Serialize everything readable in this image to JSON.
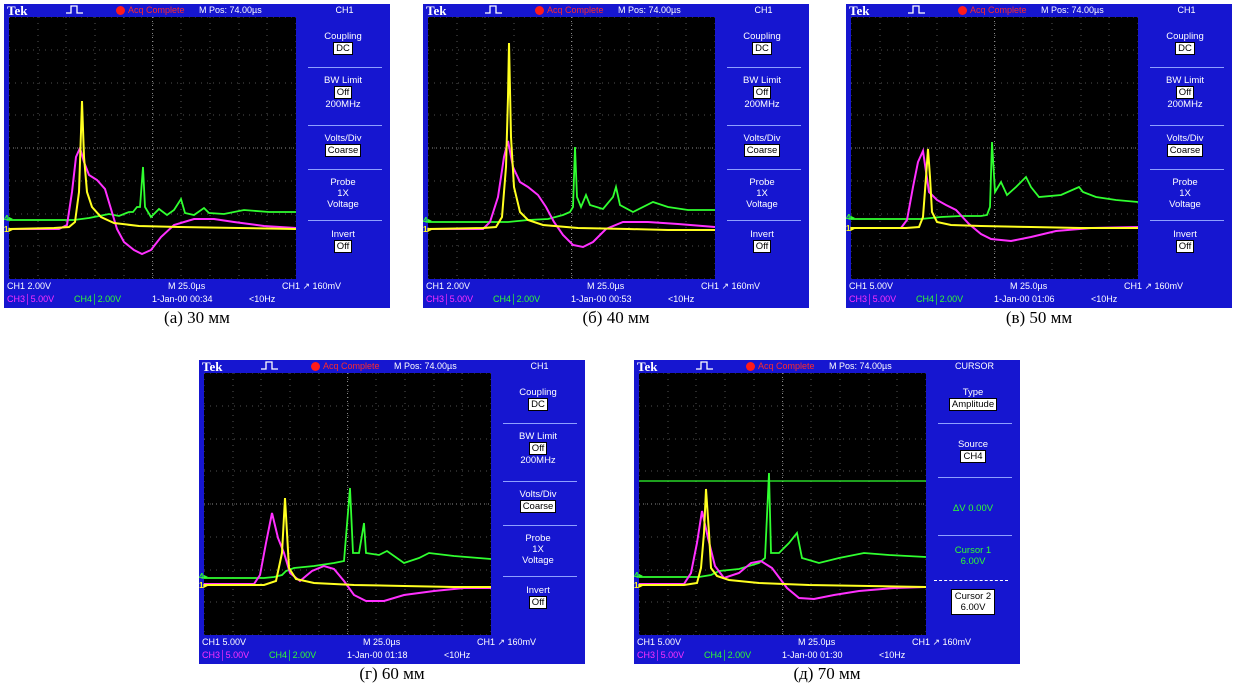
{
  "colors": {
    "ch1": "#ffff20",
    "ch3": "#ff30ff",
    "ch4": "#30ff30",
    "frame": "#1616d0"
  },
  "panels": [
    {
      "brand": "Tek",
      "acq": "Acq Complete",
      "mpos": "M Pos: 74.00µs",
      "title": "CH1",
      "menu": [
        {
          "label": "Coupling",
          "box": "DC"
        },
        {
          "label": "BW Limit",
          "box": "Off",
          "sub": "200MHz"
        },
        {
          "label": "Volts/Div",
          "box": "Coarse"
        },
        {
          "label": "Probe",
          "line2": "1X",
          "line3": "Voltage"
        },
        {
          "label": "Invert",
          "box": "Off"
        }
      ],
      "ch1": "CH1  2.00V",
      "mtime": "M 25.0µs",
      "trig": "CH1 ↗ 160mV",
      "ch3": "CH3│5.00V",
      "ch4": "CH4│2.00V",
      "date": "1-Jan-00 00:34",
      "freq": "<10Hz",
      "caption": "(а) 30 мм"
    },
    {
      "brand": "Tek",
      "acq": "Acq Complete",
      "mpos": "M Pos: 74.00µs",
      "title": "CH1",
      "menu": [
        {
          "label": "Coupling",
          "box": "DC"
        },
        {
          "label": "BW Limit",
          "box": "Off",
          "sub": "200MHz"
        },
        {
          "label": "Volts/Div",
          "box": "Coarse"
        },
        {
          "label": "Probe",
          "line2": "1X",
          "line3": "Voltage"
        },
        {
          "label": "Invert",
          "box": "Off"
        }
      ],
      "ch1": "CH1  2.00V",
      "mtime": "M 25.0µs",
      "trig": "CH1 ↗ 160mV",
      "ch3": "CH3│5.00V",
      "ch4": "CH4│2.00V",
      "date": "1-Jan-00 00:53",
      "freq": "<10Hz",
      "caption": "(б) 40 мм"
    },
    {
      "brand": "Tek",
      "acq": "Acq Complete",
      "mpos": "M Pos: 74.00µs",
      "title": "CH1",
      "menu": [
        {
          "label": "Coupling",
          "box": "DC"
        },
        {
          "label": "BW Limit",
          "box": "Off",
          "sub": "200MHz"
        },
        {
          "label": "Volts/Div",
          "box": "Coarse"
        },
        {
          "label": "Probe",
          "line2": "1X",
          "line3": "Voltage"
        },
        {
          "label": "Invert",
          "box": "Off"
        }
      ],
      "ch1": "CH1  5.00V",
      "mtime": "M 25.0µs",
      "trig": "CH1 ↗ 160mV",
      "ch3": "CH3│5.00V",
      "ch4": "CH4│2.00V",
      "date": "1-Jan-00 01:06",
      "freq": "<10Hz",
      "caption": "(в) 50 мм"
    },
    {
      "brand": "Tek",
      "acq": "Acq Complete",
      "mpos": "M Pos: 74.00µs",
      "title": "CH1",
      "menu": [
        {
          "label": "Coupling",
          "box": "DC"
        },
        {
          "label": "BW Limit",
          "box": "Off",
          "sub": "200MHz"
        },
        {
          "label": "Volts/Div",
          "box": "Coarse"
        },
        {
          "label": "Probe",
          "line2": "1X",
          "line3": "Voltage"
        },
        {
          "label": "Invert",
          "box": "Off"
        }
      ],
      "ch1": "CH1  5.00V",
      "mtime": "M 25.0µs",
      "trig": "CH1 ↗ 160mV",
      "ch3": "CH3│5.00V",
      "ch4": "CH4│2.00V",
      "date": "1-Jan-00 01:18",
      "freq": "<10Hz",
      "caption": "(г) 60 мм"
    },
    {
      "brand": "Tek",
      "acq": "Acq Complete",
      "mpos": "M Pos: 74.00µs",
      "title": "CURSOR",
      "cursor_menu": {
        "type_label": "Type",
        "type_box": "Amplitude",
        "source_label": "Source",
        "source_box": "CH4",
        "delta": "ΔV 0.00V",
        "cursor1_label": "Cursor 1",
        "cursor1_value": "6.00V",
        "cursor2_label": "Cursor 2",
        "cursor2_value": "6.00V"
      },
      "ch1": "CH1  5.00V",
      "mtime": "M 25.0µs",
      "trig": "CH1 ↗ 160mV",
      "ch3": "CH3│5.00V",
      "ch4": "CH4│2.00V",
      "date": "1-Jan-00 01:30",
      "freq": "<10Hz",
      "caption": "(д) 70 мм"
    }
  ]
}
